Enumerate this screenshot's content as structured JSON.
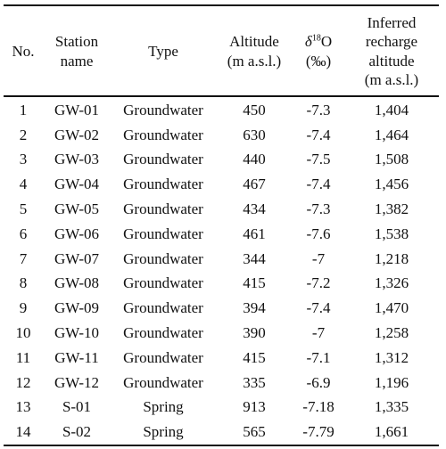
{
  "table": {
    "headers": {
      "no": "No.",
      "station": [
        "Station",
        "name"
      ],
      "type": "Type",
      "altitude": [
        "Altitude",
        "(m  a.s.l.)"
      ],
      "delta": {
        "symbol": "δ",
        "sup": "18",
        "element": "O",
        "unit": "(‰)"
      },
      "recharge": [
        "Inferred",
        "recharge",
        "altitude",
        "(m  a.s.l.)"
      ]
    },
    "rows": [
      {
        "no": "1",
        "station": "GW-01",
        "type": "Groundwater",
        "altitude": "450",
        "delta": "-7.3",
        "recharge": "1,404"
      },
      {
        "no": "2",
        "station": "GW-02",
        "type": "Groundwater",
        "altitude": "630",
        "delta": "-7.4",
        "recharge": "1,464"
      },
      {
        "no": "3",
        "station": "GW-03",
        "type": "Groundwater",
        "altitude": "440",
        "delta": "-7.5",
        "recharge": "1,508"
      },
      {
        "no": "4",
        "station": "GW-04",
        "type": "Groundwater",
        "altitude": "467",
        "delta": "-7.4",
        "recharge": "1,456"
      },
      {
        "no": "5",
        "station": "GW-05",
        "type": "Groundwater",
        "altitude": "434",
        "delta": "-7.3",
        "recharge": "1,382"
      },
      {
        "no": "6",
        "station": "GW-06",
        "type": "Groundwater",
        "altitude": "461",
        "delta": "-7.6",
        "recharge": "1,538"
      },
      {
        "no": "7",
        "station": "GW-07",
        "type": "Groundwater",
        "altitude": "344",
        "delta": "-7",
        "recharge": "1,218"
      },
      {
        "no": "8",
        "station": "GW-08",
        "type": "Groundwater",
        "altitude": "415",
        "delta": "-7.2",
        "recharge": "1,326"
      },
      {
        "no": "9",
        "station": "GW-09",
        "type": "Groundwater",
        "altitude": "394",
        "delta": "-7.4",
        "recharge": "1,470"
      },
      {
        "no": "10",
        "station": "GW-10",
        "type": "Groundwater",
        "altitude": "390",
        "delta": "-7",
        "recharge": "1,258"
      },
      {
        "no": "11",
        "station": "GW-11",
        "type": "Groundwater",
        "altitude": "415",
        "delta": "-7.1",
        "recharge": "1,312"
      },
      {
        "no": "12",
        "station": "GW-12",
        "type": "Groundwater",
        "altitude": "335",
        "delta": "-6.9",
        "recharge": "1,196"
      },
      {
        "no": "13",
        "station": "S-01",
        "type": "Spring",
        "altitude": "913",
        "delta": "-7.18",
        "recharge": "1,335"
      },
      {
        "no": "14",
        "station": "S-02",
        "type": "Spring",
        "altitude": "565",
        "delta": "-7.79",
        "recharge": "1,661"
      }
    ]
  }
}
